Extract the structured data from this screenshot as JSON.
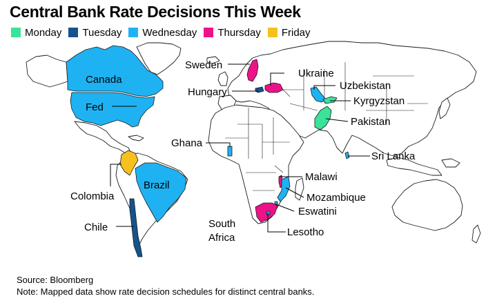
{
  "title": "Central Bank Rate Decisions This Week",
  "legend": [
    {
      "label": "Monday",
      "color": "#3be39a"
    },
    {
      "label": "Tuesday",
      "color": "#14548c"
    },
    {
      "label": "Wednesday",
      "color": "#1fb2f2"
    },
    {
      "label": "Thursday",
      "color": "#ee1289"
    },
    {
      "label": "Friday",
      "color": "#f6c11d"
    }
  ],
  "labels": {
    "canada": "Canada",
    "fed": "Fed",
    "brazil": "Brazil",
    "colombia": "Colombia",
    "chile": "Chile",
    "sweden": "Sweden",
    "ukraine": "Ukraine",
    "hungary": "Hungary",
    "uzbekistan": "Uzbekistan",
    "kyrgyzstan": "Kyrgyzstan",
    "pakistan": "Pakistan",
    "sri_lanka": "Sri Lanka",
    "ghana": "Ghana",
    "malawi": "Malawi",
    "mozambique": "Mozambique",
    "eswatini": "Eswatini",
    "south_africa_1": "South",
    "south_africa_2": "Africa",
    "lesotho": "Lesotho"
  },
  "footer": {
    "source": "Source: Bloomberg",
    "note": "Note: Mapped data show rate decision schedules for distinct central banks."
  }
}
